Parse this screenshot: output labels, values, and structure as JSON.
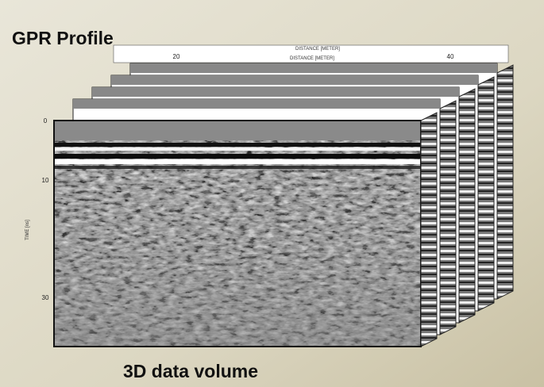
{
  "header": {
    "title": "GPR Profile"
  },
  "top_axis": {
    "label": "DISTANCE [METER]",
    "label_2": "DISTANCE [METER]",
    "ticks": [
      "20",
      "40"
    ]
  },
  "side_axis": {
    "label": "TIME [ns]",
    "ticks": [
      "0",
      "10",
      "30"
    ]
  },
  "footer": {
    "caption": "3D data volume"
  }
}
